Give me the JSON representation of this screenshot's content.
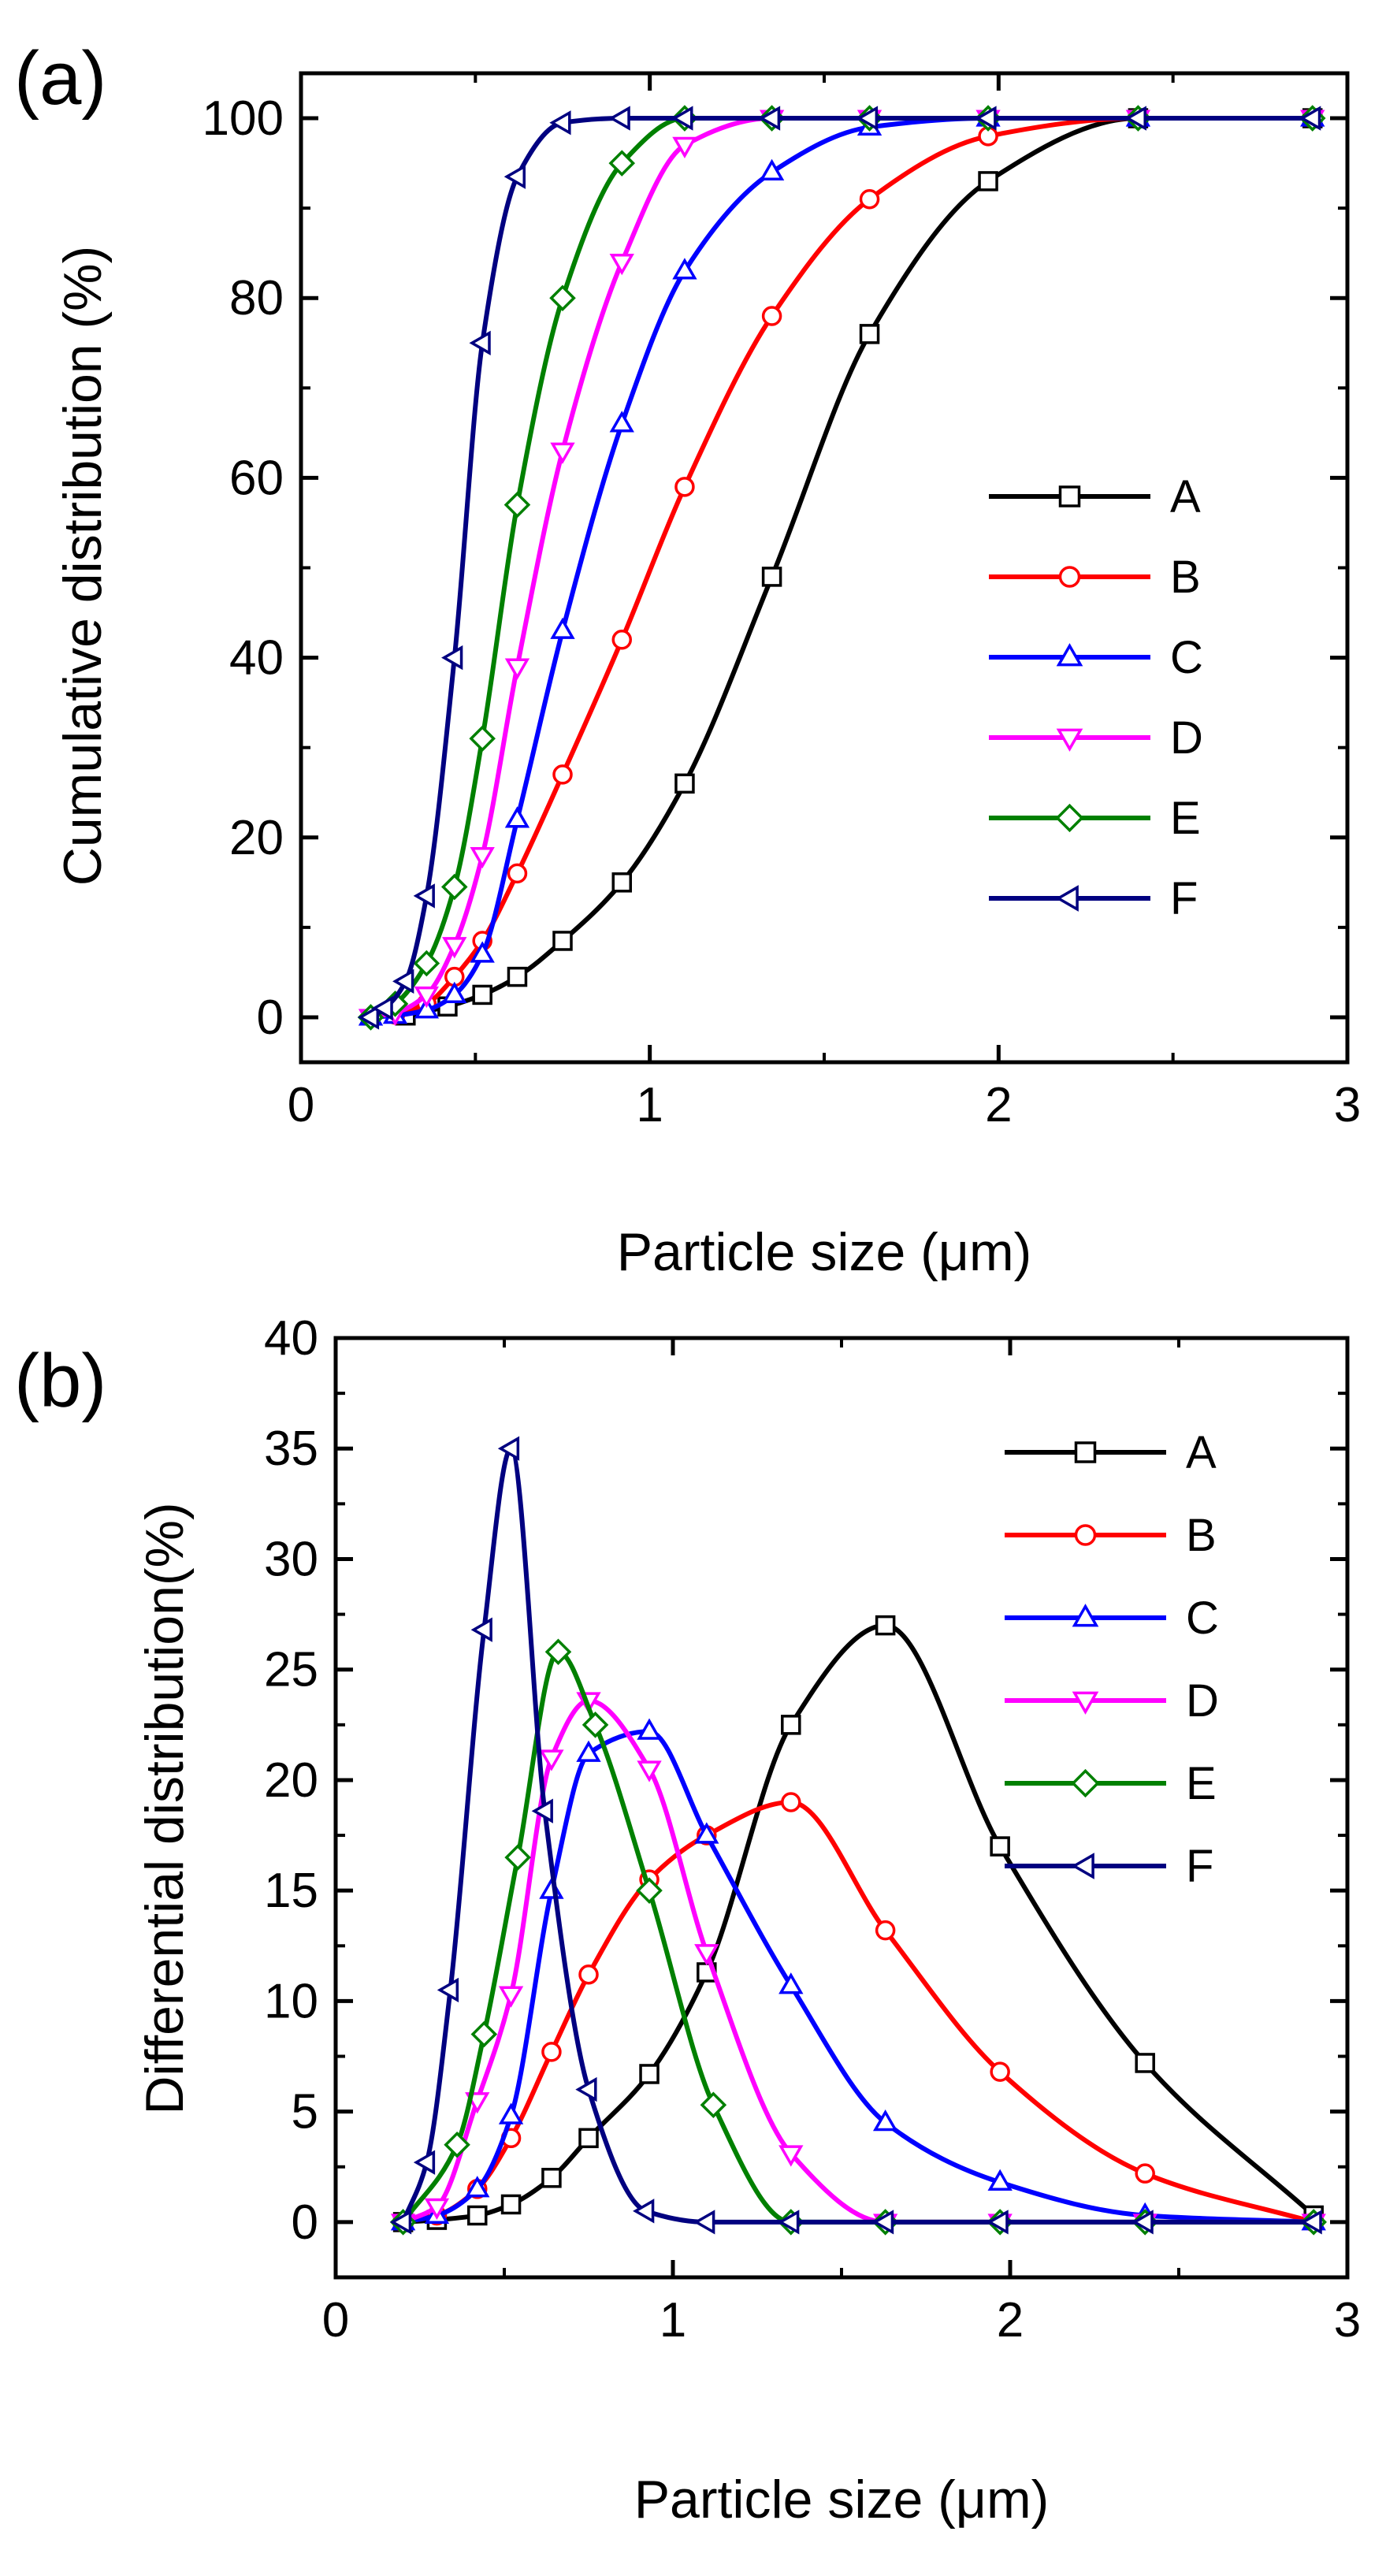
{
  "figure": {
    "panel_a_label": "(a)",
    "panel_b_label": "(b)"
  },
  "chart_data": [
    {
      "type": "line",
      "panel": "(a)",
      "xlabel": "Particle size (μm)",
      "ylabel": "Cumulative distribution (%)",
      "xlim": [
        0,
        3
      ],
      "ylim": [
        -5,
        105
      ],
      "xticks": [
        0,
        1,
        2,
        3
      ],
      "yticks": [
        0,
        20,
        40,
        60,
        80,
        100
      ],
      "xtick_labels": [
        "0",
        "1",
        "2",
        "3"
      ],
      "ytick_labels": [
        "0",
        "20",
        "40",
        "60",
        "80",
        "100"
      ],
      "legend_position": "center-right",
      "series": [
        {
          "name": "A",
          "color": "#000000",
          "marker": "square",
          "x": [
            0.3,
            0.42,
            0.52,
            0.62,
            0.75,
            0.92,
            1.1,
            1.35,
            1.63,
            1.97,
            2.4,
            2.9
          ],
          "y": [
            0.2,
            1.2,
            2.5,
            4.5,
            8.5,
            15,
            26,
            49,
            76,
            93,
            100,
            100
          ]
        },
        {
          "name": "B",
          "color": "#ff0000",
          "marker": "circle",
          "x": [
            0.27,
            0.36,
            0.44,
            0.52,
            0.62,
            0.75,
            0.92,
            1.1,
            1.35,
            1.63,
            1.97,
            2.4,
            2.9
          ],
          "y": [
            0.3,
            1.5,
            4.5,
            8.5,
            16,
            27,
            42,
            59,
            78,
            91,
            98,
            100,
            100
          ]
        },
        {
          "name": "C",
          "color": "#0000ff",
          "marker": "triangle-up",
          "x": [
            0.2,
            0.27,
            0.36,
            0.44,
            0.52,
            0.62,
            0.75,
            0.92,
            1.1,
            1.35,
            1.63,
            1.97,
            2.4,
            2.9
          ],
          "y": [
            0,
            0.2,
            0.8,
            2.5,
            7,
            22,
            43,
            66,
            83,
            94,
            99,
            100,
            100,
            100
          ]
        },
        {
          "name": "D",
          "color": "#ff00ff",
          "marker": "triangle-down",
          "x": [
            0.2,
            0.27,
            0.36,
            0.44,
            0.52,
            0.62,
            0.75,
            0.92,
            1.1,
            1.35,
            1.63,
            1.97,
            2.4,
            2.9
          ],
          "y": [
            0,
            0.5,
            2.5,
            8,
            18,
            39,
            63,
            84,
            97,
            100,
            100,
            100,
            100,
            100
          ]
        },
        {
          "name": "E",
          "color": "#008000",
          "marker": "diamond",
          "x": [
            0.2,
            0.27,
            0.36,
            0.44,
            0.52,
            0.62,
            0.75,
            0.92,
            1.1,
            1.35,
            1.63,
            1.97,
            2.4,
            2.9
          ],
          "y": [
            0,
            1.5,
            6,
            14.5,
            31,
            57,
            80,
            95,
            100,
            100,
            100,
            100,
            100,
            100
          ]
        },
        {
          "name": "F",
          "color": "#000080",
          "marker": "triangle-left",
          "x": [
            0.2,
            0.24,
            0.3,
            0.36,
            0.44,
            0.52,
            0.62,
            0.75,
            0.92,
            1.1,
            1.35,
            1.63,
            1.97,
            2.4,
            2.9
          ],
          "y": [
            0,
            1,
            4,
            13.5,
            40,
            75,
            93.5,
            99.5,
            100,
            100,
            100,
            100,
            100,
            100,
            100
          ]
        }
      ]
    },
    {
      "type": "line",
      "panel": "(b)",
      "xlabel": "Particle size (μm)",
      "ylabel": "Differential distribution(%)",
      "xlim": [
        0,
        3
      ],
      "ylim": [
        -2.5,
        40
      ],
      "xticks": [
        0,
        1,
        2,
        3
      ],
      "yticks": [
        0,
        5,
        10,
        15,
        20,
        25,
        30,
        35,
        40
      ],
      "xtick_labels": [
        "0",
        "1",
        "2",
        "3"
      ],
      "ytick_labels": [
        "0",
        "5",
        "10",
        "15",
        "20",
        "25",
        "30",
        "35",
        "40"
      ],
      "legend_position": "top-right",
      "series": [
        {
          "name": "A",
          "color": "#000000",
          "marker": "square",
          "x": [
            0.2,
            0.3,
            0.42,
            0.52,
            0.64,
            0.75,
            0.93,
            1.1,
            1.35,
            1.63,
            1.97,
            2.4,
            2.9
          ],
          "y": [
            0,
            0.1,
            0.3,
            0.8,
            2,
            3.8,
            6.7,
            11.3,
            22.5,
            27,
            17,
            7.2,
            0.3
          ]
        },
        {
          "name": "B",
          "color": "#ff0000",
          "marker": "circle",
          "x": [
            0.2,
            0.3,
            0.42,
            0.52,
            0.64,
            0.75,
            0.93,
            1.1,
            1.35,
            1.63,
            1.97,
            2.4,
            2.9
          ],
          "y": [
            0,
            0.3,
            1.5,
            3.8,
            7.7,
            11.2,
            15.5,
            17.5,
            19,
            13.2,
            6.8,
            2.2,
            0
          ]
        },
        {
          "name": "C",
          "color": "#0000ff",
          "marker": "triangle-up",
          "x": [
            0.2,
            0.3,
            0.42,
            0.52,
            0.64,
            0.75,
            0.93,
            1.1,
            1.35,
            1.63,
            1.97,
            2.4,
            2.9
          ],
          "y": [
            0,
            0.3,
            1.5,
            4.8,
            15,
            21.2,
            22.2,
            17.5,
            10.7,
            4.5,
            1.8,
            0.3,
            0
          ]
        },
        {
          "name": "D",
          "color": "#ff00ff",
          "marker": "triangle-down",
          "x": [
            0.2,
            0.3,
            0.42,
            0.52,
            0.64,
            0.75,
            0.93,
            1.1,
            1.35,
            1.63,
            1.97,
            2.4,
            2.9
          ],
          "y": [
            0,
            0.7,
            5.5,
            10.3,
            21,
            23.6,
            20.5,
            12.2,
            3.1,
            0,
            0,
            0,
            0
          ]
        },
        {
          "name": "E",
          "color": "#008000",
          "marker": "diamond",
          "x": [
            0.2,
            0.36,
            0.44,
            0.54,
            0.66,
            0.77,
            0.93,
            1.12,
            1.35,
            1.63,
            1.97,
            2.4,
            2.9
          ],
          "y": [
            0,
            3.5,
            8.5,
            16.5,
            25.8,
            22.5,
            15,
            5.3,
            0,
            0,
            0,
            0,
            0
          ]
        },
        {
          "name": "F",
          "color": "#000080",
          "marker": "triangle-left",
          "x": [
            0.2,
            0.27,
            0.34,
            0.44,
            0.52,
            0.62,
            0.75,
            0.92,
            1.1,
            1.35,
            1.63,
            1.97,
            2.4,
            2.9
          ],
          "y": [
            0,
            2.7,
            10.5,
            26.8,
            35,
            18.6,
            6,
            0.5,
            0,
            0,
            0,
            0,
            0,
            0
          ]
        }
      ]
    }
  ]
}
